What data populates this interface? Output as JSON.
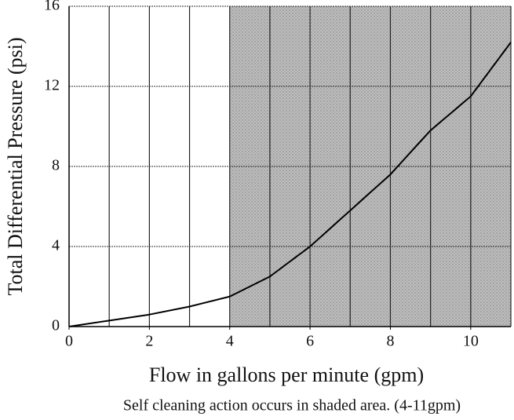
{
  "chart_data": {
    "type": "line",
    "x_label": "Flow in gallons per minute (gpm)",
    "y_label": "Total Differential Pressure (psi)",
    "annotation": "Self cleaning action occurs in shaded area. (4-11gpm)",
    "x": [
      0,
      1,
      2,
      3,
      4,
      5,
      6,
      7,
      8,
      9,
      10,
      11
    ],
    "series": [
      {
        "color": "#000000",
        "values": [
          0,
          0.3,
          0.6,
          1.0,
          1.5,
          2.5,
          4.0,
          5.8,
          7.6,
          9.8,
          11.5,
          14.2
        ]
      }
    ],
    "xlim": [
      0,
      11
    ],
    "ylim": [
      0,
      16
    ],
    "xticks": [
      0,
      2,
      4,
      6,
      8,
      10
    ],
    "yticks": [
      0,
      4,
      8,
      12,
      16
    ],
    "xgrid": [
      1,
      2,
      3,
      4,
      5,
      6,
      7,
      8,
      9,
      10,
      11
    ],
    "shade": [
      4,
      11
    ],
    "shade_color": "#bdbdbd",
    "grid": true
  }
}
